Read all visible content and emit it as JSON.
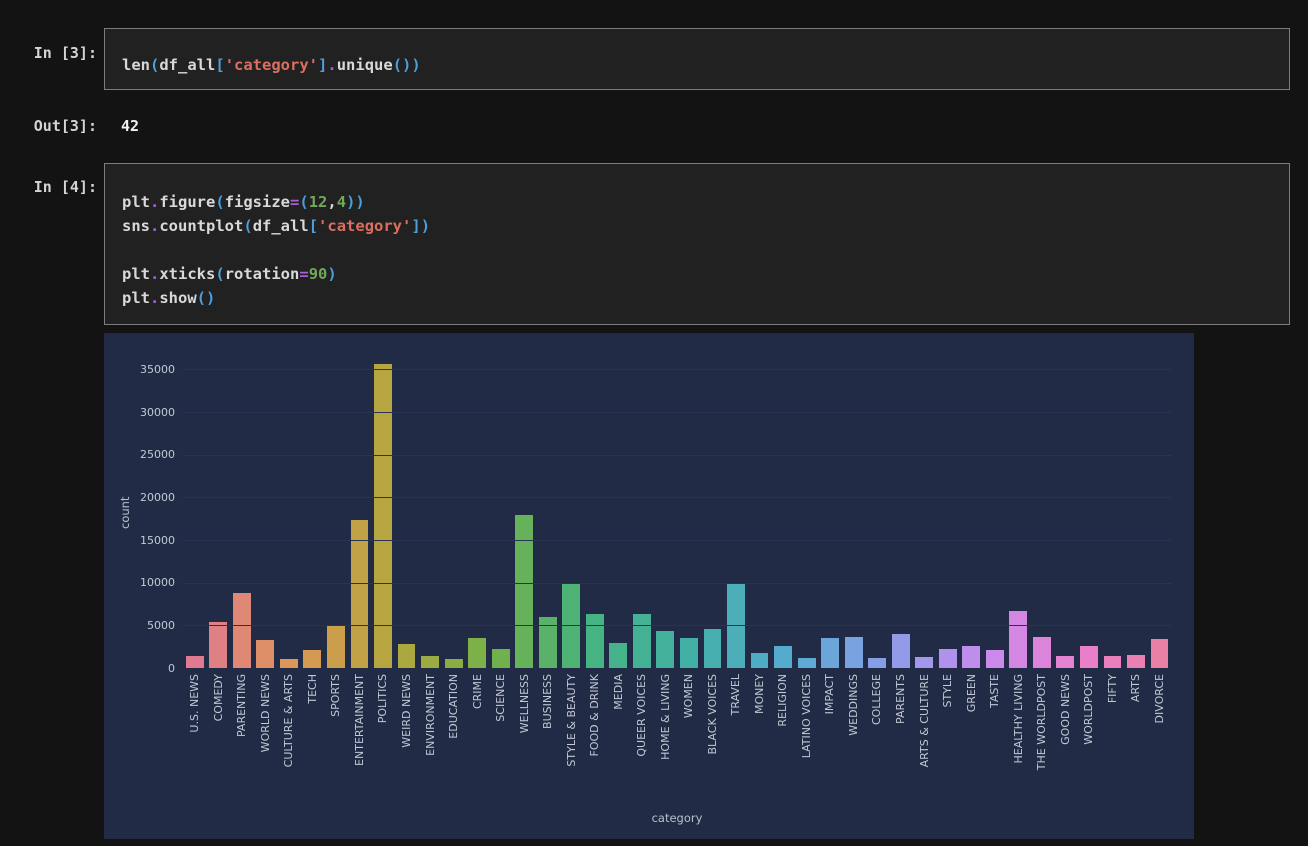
{
  "page": {
    "background": "#131313"
  },
  "cell1": {
    "prompt": "In [3]:",
    "lines": [
      [
        {
          "t": "len",
          "c": "id"
        },
        {
          "t": "(",
          "c": "br"
        },
        {
          "t": "df_all",
          "c": "id"
        },
        {
          "t": "[",
          "c": "br"
        },
        {
          "t": "'category'",
          "c": "st"
        },
        {
          "t": "]",
          "c": "br"
        },
        {
          "t": ".",
          "c": "op"
        },
        {
          "t": "unique",
          "c": "id"
        },
        {
          "t": "(",
          "c": "br"
        },
        {
          "t": ")",
          "c": "br"
        },
        {
          "t": ")",
          "c": "br"
        }
      ]
    ]
  },
  "out1": {
    "prompt": "Out[3]:",
    "value": "42"
  },
  "cell2": {
    "prompt": "In [4]:",
    "lines": [
      [
        {
          "t": "plt",
          "c": "id"
        },
        {
          "t": ".",
          "c": "op"
        },
        {
          "t": "figure",
          "c": "id"
        },
        {
          "t": "(",
          "c": "br"
        },
        {
          "t": "figsize",
          "c": "id"
        },
        {
          "t": "=",
          "c": "op"
        },
        {
          "t": "(",
          "c": "br"
        },
        {
          "t": "12",
          "c": "num"
        },
        {
          "t": ",",
          "c": "id"
        },
        {
          "t": "4",
          "c": "num"
        },
        {
          "t": ")",
          "c": "br"
        },
        {
          "t": ")",
          "c": "br"
        }
      ],
      [
        {
          "t": "sns",
          "c": "id"
        },
        {
          "t": ".",
          "c": "op"
        },
        {
          "t": "countplot",
          "c": "id"
        },
        {
          "t": "(",
          "c": "br"
        },
        {
          "t": "df_all",
          "c": "id"
        },
        {
          "t": "[",
          "c": "br"
        },
        {
          "t": "'category'",
          "c": "st"
        },
        {
          "t": "]",
          "c": "br"
        },
        {
          "t": ")",
          "c": "br"
        }
      ],
      [],
      [
        {
          "t": "plt",
          "c": "id"
        },
        {
          "t": ".",
          "c": "op"
        },
        {
          "t": "xticks",
          "c": "id"
        },
        {
          "t": "(",
          "c": "br"
        },
        {
          "t": "rotation",
          "c": "id"
        },
        {
          "t": "=",
          "c": "op"
        },
        {
          "t": "90",
          "c": "num"
        },
        {
          "t": ")",
          "c": "br"
        }
      ],
      [
        {
          "t": "plt",
          "c": "id"
        },
        {
          "t": ".",
          "c": "op"
        },
        {
          "t": "show",
          "c": "id"
        },
        {
          "t": "(",
          "c": "br"
        },
        {
          "t": ")",
          "c": "br"
        }
      ]
    ]
  },
  "chart_data": {
    "type": "bar",
    "title": "",
    "xlabel": "category",
    "ylabel": "count",
    "ylim": [
      0,
      37400
    ],
    "yticks": [
      0,
      5000,
      10000,
      15000,
      20000,
      25000,
      30000,
      35000
    ],
    "grid": true,
    "legend": false,
    "background": "#222b45",
    "gridline_color": "#2a3354",
    "tick_color": "#c3c8d4",
    "palette_anchors": [
      "#e07a92",
      "#dd9757",
      "#b3a73e",
      "#74b148",
      "#46b381",
      "#43b0a5",
      "#55abd0",
      "#8a9ee8",
      "#c88bee",
      "#e97fcb",
      "#e9819b"
    ],
    "categories": [
      "U.S. NEWS",
      "COMEDY",
      "PARENTING",
      "WORLD NEWS",
      "CULTURE & ARTS",
      "TECH",
      "SPORTS",
      "ENTERTAINMENT",
      "POLITICS",
      "WEIRD NEWS",
      "ENVIRONMENT",
      "EDUCATION",
      "CRIME",
      "SCIENCE",
      "WELLNESS",
      "BUSINESS",
      "STYLE & BEAUTY",
      "FOOD & DRINK",
      "MEDIA",
      "QUEER VOICES",
      "HOME & LIVING",
      "WOMEN",
      "BLACK VOICES",
      "TRAVEL",
      "MONEY",
      "RELIGION",
      "LATINO VOICES",
      "IMPACT",
      "WEDDINGS",
      "COLLEGE",
      "PARENTS",
      "ARTS & CULTURE",
      "STYLE",
      "GREEN",
      "TASTE",
      "HEALTHY LIVING",
      "THE WORLDPOST",
      "GOOD NEWS",
      "WORLDPOST",
      "FIFTY",
      "ARTS",
      "DIVORCE"
    ],
    "values": [
      1377,
      5400,
      8791,
      3299,
      1074,
      2104,
      5077,
      17362,
      35602,
      2777,
      1444,
      1014,
      3562,
      2206,
      17945,
      5992,
      9814,
      6340,
      2944,
      6347,
      4320,
      3572,
      4583,
      9900,
      1756,
      2577,
      1130,
      3484,
      3653,
      1144,
      3955,
      1339,
      2254,
      2622,
      2096,
      6694,
      3664,
      1398,
      2579,
      1401,
      1509,
      3426
    ]
  }
}
